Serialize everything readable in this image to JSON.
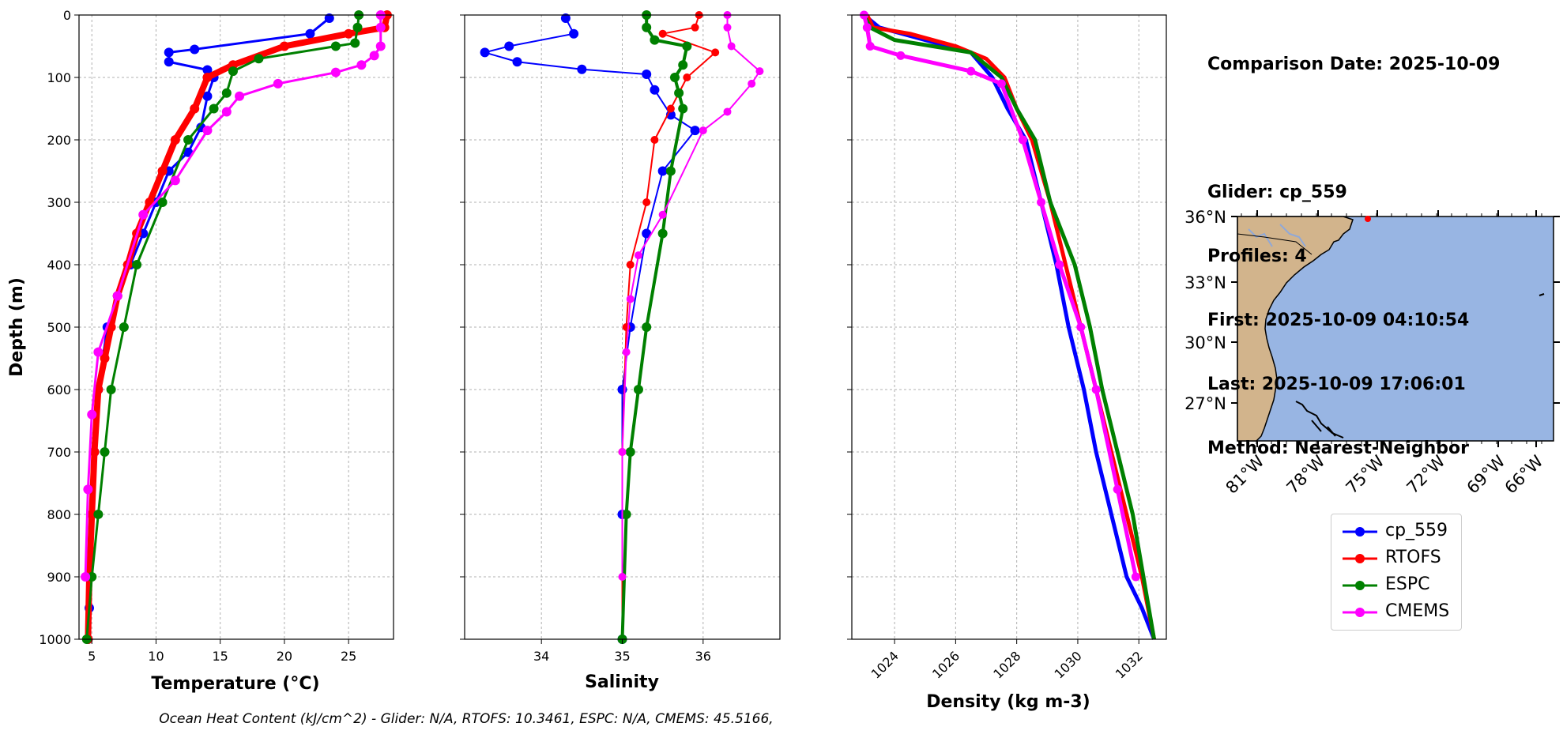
{
  "chart_data": [
    {
      "type": "line",
      "panel": "temperature",
      "xlabel": "Temperature (°C)",
      "ylabel": "Depth (m)",
      "xlim": [
        4,
        28.5
      ],
      "ylim": [
        1000,
        0
      ],
      "y_inverted": true,
      "grid": true,
      "xticks": [
        5,
        10,
        15,
        20,
        25
      ],
      "yticks": [
        0,
        100,
        200,
        300,
        400,
        500,
        600,
        700,
        800,
        900,
        1000
      ],
      "series": [
        {
          "name": "cp_559",
          "color": "#0000ff",
          "x": [
            23.5,
            22.0,
            13.0,
            11.0,
            11.0,
            14.0,
            14.5,
            14.0,
            13.5,
            12.5,
            11.0,
            10.0,
            9.0,
            8.0,
            7.0,
            6.2,
            5.5,
            5.2,
            5.0,
            4.9,
            4.8,
            4.7
          ],
          "y": [
            5,
            30,
            55,
            60,
            75,
            88,
            100,
            130,
            180,
            220,
            250,
            300,
            350,
            400,
            450,
            500,
            600,
            700,
            800,
            900,
            950,
            1000
          ]
        },
        {
          "name": "RTOFS",
          "color": "#ff0000",
          "x": [
            28.0,
            27.8,
            25.0,
            20.0,
            16.0,
            14.0,
            13.0,
            11.5,
            10.5,
            9.5,
            8.5,
            7.8,
            7.0,
            6.5,
            6.0,
            5.5,
            5.2,
            5.0,
            4.8,
            4.7
          ],
          "y": [
            0,
            20,
            30,
            50,
            80,
            100,
            150,
            200,
            250,
            300,
            350,
            400,
            450,
            500,
            550,
            600,
            700,
            800,
            900,
            1000
          ]
        },
        {
          "name": "ESPC",
          "color": "#008000",
          "x": [
            25.8,
            25.7,
            25.5,
            24.0,
            18.0,
            16.0,
            15.5,
            14.5,
            12.5,
            10.5,
            8.5,
            7.5,
            6.5,
            6.0,
            5.5,
            5.0,
            4.6
          ],
          "y": [
            0,
            20,
            45,
            50,
            70,
            90,
            125,
            150,
            200,
            300,
            400,
            500,
            600,
            700,
            800,
            900,
            1000
          ]
        },
        {
          "name": "CMEMS",
          "color": "#ff00ff",
          "x": [
            27.5,
            27.5,
            27.5,
            27.0,
            26.0,
            24.0,
            19.5,
            16.5,
            15.5,
            14.0,
            11.5,
            9.0,
            7.0,
            5.5,
            5.0,
            4.7,
            4.5
          ],
          "y": [
            0,
            20,
            50,
            65,
            80,
            92,
            110,
            130,
            155,
            185,
            265,
            320,
            450,
            540,
            640,
            760,
            900
          ]
        }
      ]
    },
    {
      "type": "line",
      "panel": "salinity",
      "xlabel": "Salinity",
      "xlim": [
        33.05,
        36.95
      ],
      "ylim": [
        1000,
        0
      ],
      "y_inverted": true,
      "grid": true,
      "xticks": [
        34,
        35,
        36
      ],
      "series": [
        {
          "name": "cp_559",
          "color": "#0000ff",
          "x": [
            34.3,
            34.4,
            33.6,
            33.3,
            33.7,
            34.5,
            35.3,
            35.4,
            35.6,
            35.9,
            35.5,
            35.3,
            35.1,
            35.0,
            35.0,
            35.0
          ],
          "y": [
            5,
            30,
            50,
            60,
            75,
            87,
            95,
            120,
            160,
            185,
            250,
            350,
            500,
            600,
            800,
            1000
          ]
        },
        {
          "name": "RTOFS",
          "color": "#ff0000",
          "x": [
            35.95,
            35.9,
            35.5,
            36.15,
            35.8,
            35.6,
            35.4,
            35.3,
            35.1,
            35.05,
            35.0,
            35.0
          ],
          "y": [
            0,
            20,
            30,
            60,
            100,
            150,
            200,
            300,
            400,
            500,
            700,
            1000
          ]
        },
        {
          "name": "ESPC",
          "color": "#008000",
          "x": [
            35.3,
            35.3,
            35.4,
            35.8,
            35.75,
            35.65,
            35.7,
            35.75,
            35.6,
            35.5,
            35.3,
            35.2,
            35.1,
            35.05,
            35.0
          ],
          "y": [
            0,
            20,
            40,
            50,
            80,
            100,
            125,
            150,
            250,
            350,
            500,
            600,
            700,
            800,
            1000
          ]
        },
        {
          "name": "CMEMS",
          "color": "#ff00ff",
          "x": [
            36.3,
            36.3,
            36.35,
            36.7,
            36.6,
            36.3,
            36.0,
            35.5,
            35.2,
            35.1,
            35.05,
            35.0,
            35.0
          ],
          "y": [
            0,
            20,
            50,
            90,
            110,
            155,
            185,
            320,
            385,
            455,
            540,
            700,
            900
          ]
        }
      ]
    },
    {
      "type": "line",
      "panel": "density",
      "xlabel": "Density (kg m-3)",
      "xlim": [
        1022.6,
        1032.9
      ],
      "ylim": [
        1000,
        0
      ],
      "y_inverted": true,
      "grid": true,
      "xticks": [
        1024,
        1026,
        1028,
        1030,
        1032
      ],
      "series": [
        {
          "name": "cp_559",
          "color": "#0000ff",
          "x": [
            1023.0,
            1023.5,
            1025.0,
            1026.5,
            1027.2,
            1027.7,
            1028.3,
            1028.8,
            1029.3,
            1029.7,
            1030.2,
            1030.6,
            1031.1,
            1031.6,
            1032.1,
            1032.5
          ],
          "y": [
            0,
            20,
            40,
            60,
            100,
            150,
            200,
            300,
            400,
            500,
            600,
            700,
            800,
            900,
            950,
            1000
          ]
        },
        {
          "name": "RTOFS",
          "color": "#ff0000",
          "x": [
            1023.1,
            1023.3,
            1024.5,
            1026.0,
            1027.0,
            1027.6,
            1028.0,
            1028.5,
            1029.1,
            1029.6,
            1030.1,
            1030.6,
            1031.1,
            1031.6,
            1032.1,
            1032.5
          ],
          "y": [
            0,
            20,
            30,
            50,
            70,
            100,
            150,
            200,
            300,
            400,
            500,
            600,
            700,
            800,
            900,
            1000
          ]
        },
        {
          "name": "ESPC",
          "color": "#008000",
          "x": [
            1023.0,
            1023.2,
            1024.0,
            1026.5,
            1027.5,
            1028.0,
            1028.6,
            1029.1,
            1029.5,
            1029.9,
            1030.4,
            1030.8,
            1031.3,
            1031.8,
            1032.5
          ],
          "y": [
            0,
            20,
            40,
            60,
            100,
            150,
            200,
            300,
            350,
            400,
            500,
            600,
            700,
            800,
            1000
          ]
        },
        {
          "name": "CMEMS",
          "color": "#ff00ff",
          "x": [
            1023.0,
            1023.1,
            1023.2,
            1024.2,
            1026.5,
            1027.5,
            1028.2,
            1028.8,
            1029.4,
            1030.1,
            1030.6,
            1031.3,
            1031.9
          ],
          "y": [
            0,
            20,
            50,
            65,
            90,
            110,
            200,
            300,
            400,
            500,
            600,
            760,
            900
          ]
        }
      ]
    }
  ],
  "info": {
    "comparison_date": "Comparison Date: 2025-10-09",
    "glider": "Glider: cp_559",
    "profiles": "Profiles: 4",
    "first": "First: 2025-10-09 04:10:54",
    "last": "Last: 2025-10-09 17:06:01",
    "method": "Method: Nearest-Neighbor"
  },
  "map": {
    "lat_ticks": [
      "36°N",
      "33°N",
      "30°N",
      "27°N"
    ],
    "lon_ticks": [
      "81°W",
      "78°W",
      "75°W",
      "72°W",
      "69°W",
      "66°W"
    ],
    "land_color": "#d2b48c",
    "ocean_color": "#98b5e3",
    "glider_marker_color": "#ff0000"
  },
  "legend": [
    "cp_559",
    "RTOFS",
    "ESPC",
    "CMEMS"
  ],
  "footer": "Ocean Heat Content (kJ/cm^2) - Glider: N/A,  RTOFS: 10.3461,  ESPC: N/A,  CMEMS: 45.5166,"
}
